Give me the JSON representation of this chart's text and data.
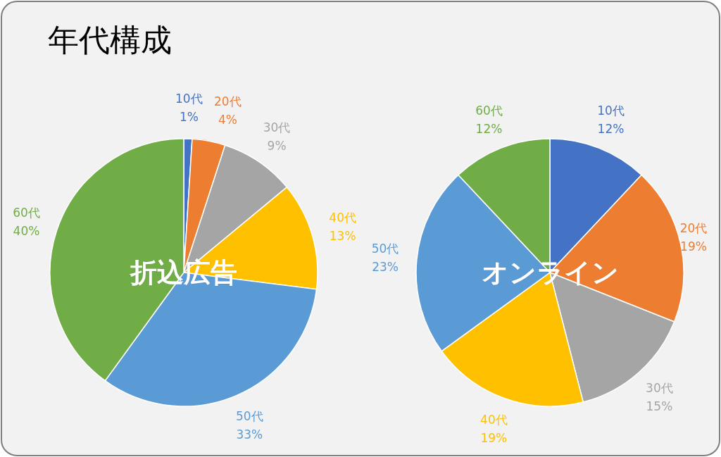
{
  "chart_data": [
    {
      "type": "pie",
      "title": "折込広告",
      "annotations": [
        "年代構成"
      ],
      "categories": [
        "10代",
        "20代",
        "30代",
        "40代",
        "50代",
        "60代"
      ],
      "values": [
        1,
        4,
        9,
        13,
        33,
        40
      ],
      "value_labels": [
        "1%",
        "4%",
        "9%",
        "13%",
        "33%",
        "40%"
      ],
      "colors": [
        "#4472c4",
        "#ed7d31",
        "#a5a5a5",
        "#ffc000",
        "#5b9bd5",
        "#70ad47"
      ]
    },
    {
      "type": "pie",
      "title": "オンライン",
      "categories": [
        "10代",
        "20代",
        "30代",
        "40代",
        "50代",
        "60代"
      ],
      "values": [
        12,
        19,
        15,
        19,
        23,
        12
      ],
      "value_labels": [
        "12%",
        "19%",
        "15%",
        "19%",
        "23%",
        "12%"
      ],
      "colors": [
        "#4472c4",
        "#ed7d31",
        "#a5a5a5",
        "#ffc000",
        "#5b9bd5",
        "#70ad47"
      ]
    }
  ]
}
